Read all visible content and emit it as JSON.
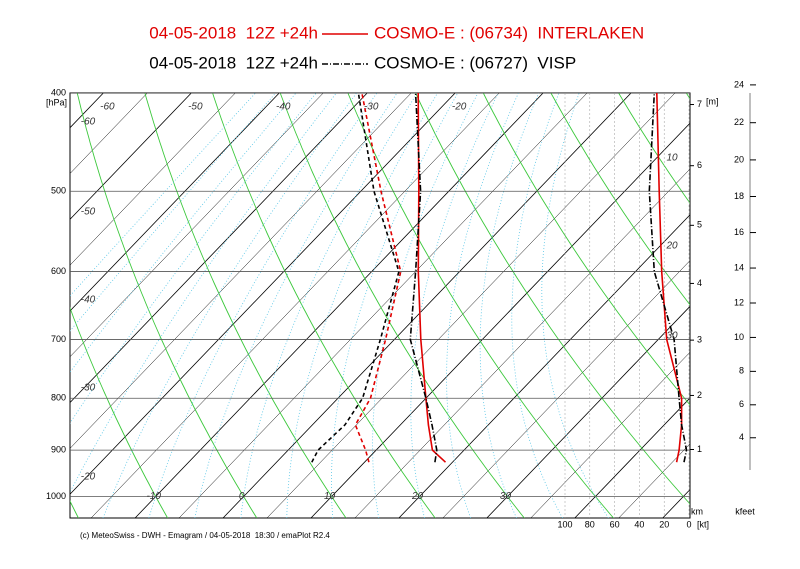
{
  "chart_data": {
    "type": "emagram",
    "series": [
      {
        "run": "04-05-2018  12Z +24h",
        "name": "COSMO-E : (06734)  INTERLAKEN",
        "color": "#e00000",
        "dash": "solid",
        "pressure": [
          925,
          900,
          850,
          800,
          700,
          600,
          500,
          400
        ],
        "temperature": [
          19.2,
          16.4,
          13.2,
          10.0,
          3.0,
          -4.7,
          -13.4,
          -24.2
        ],
        "dewpoint": [
          10.5,
          8.8,
          4.9,
          3.7,
          -1.0,
          -6.7,
          -17.7,
          -30.6
        ],
        "wind_speed": [
          10,
          8,
          6,
          6,
          18,
          22,
          24,
          26
        ]
      },
      {
        "run": "04-05-2018  12Z +24h",
        "name": "COSMO-E : (06727)  VISP",
        "color": "#000000",
        "dash": "dashdot",
        "pressure": [
          925,
          900,
          850,
          800,
          700,
          600,
          500,
          400
        ],
        "temperature": [
          18.0,
          16.9,
          13.6,
          10.0,
          1.8,
          -5.0,
          -13.2,
          -24.5
        ],
        "dewpoint": [
          4.0,
          3.4,
          3.7,
          2.8,
          -1.6,
          -6.9,
          -18.5,
          -31.0
        ],
        "wind_speed": [
          4,
          2,
          6,
          8,
          12,
          28,
          32,
          28
        ]
      }
    ],
    "y_label": "[hPa]",
    "ylim": [
      1050,
      400
    ],
    "log_y": true,
    "yticks": [
      400,
      500,
      600,
      700,
      800,
      900,
      1000
    ],
    "xlim": [
      -17.4,
      53.1
    ],
    "xticks_bottom": [
      -10,
      0,
      10,
      20,
      30
    ],
    "xticks_top": [
      -60,
      -50,
      -40,
      -30,
      -20
    ],
    "adiabat_labels_left": [
      -60,
      -50,
      -40,
      -30,
      -20
    ],
    "adiabat_labels_right": [
      10,
      20,
      30
    ],
    "height_label": "[m]",
    "height_unit": "km",
    "height_ticks": [
      1,
      2,
      3,
      4,
      5,
      6,
      7
    ],
    "feet_unit": "kfeet",
    "feet_ticks": [
      4,
      6,
      8,
      10,
      12,
      14,
      16,
      18,
      20,
      22,
      24
    ],
    "wind_label": "[kt]",
    "wind_xlim": [
      100,
      0
    ],
    "wind_ticks": [
      100,
      80,
      60,
      40,
      20,
      0
    ],
    "footer": "(c) MeteoSwiss - DWH - Emagram / 04-05-2018  18:30 / emaPlot R2.4"
  }
}
